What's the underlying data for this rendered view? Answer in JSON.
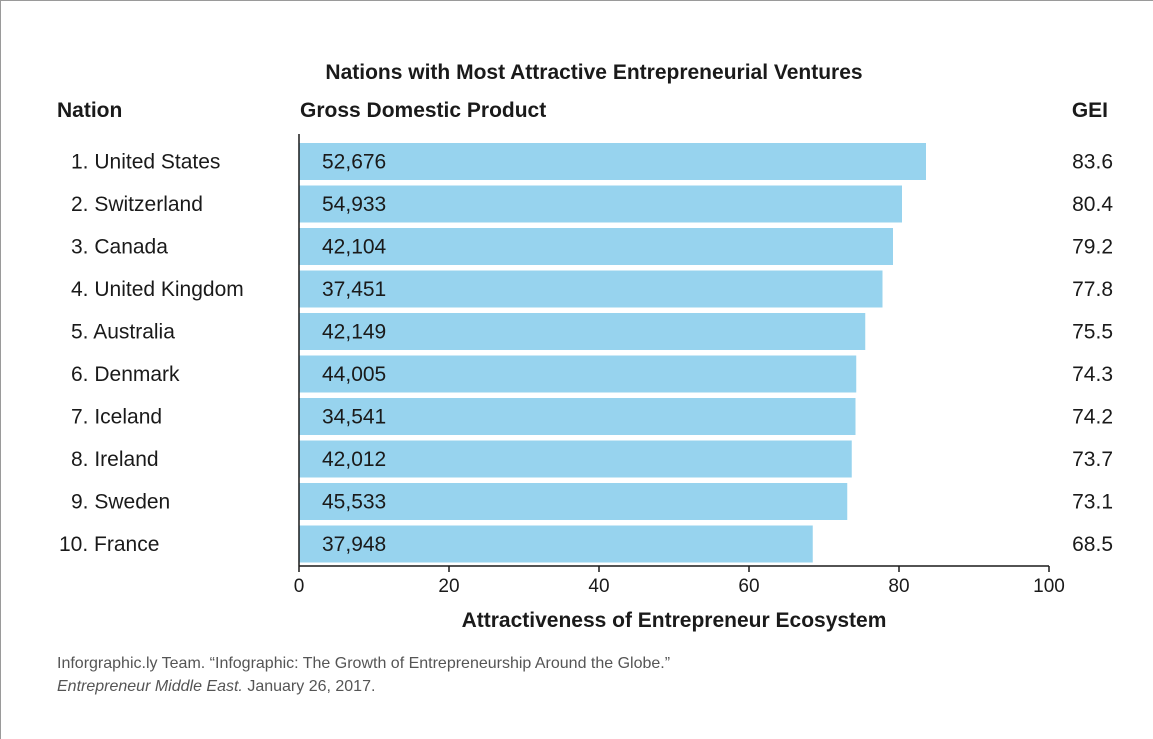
{
  "chart_data": {
    "type": "bar",
    "orientation": "horizontal",
    "title": "Nations with Most Attractive Entrepreneurial Ventures",
    "column_headers": {
      "nation": "Nation",
      "gdp": "Gross Domestic Product",
      "gei": "GEI"
    },
    "xlabel": "Attractiveness of Entrepreneur Ecosystem",
    "xlim": [
      0,
      100
    ],
    "xticks": [
      "0",
      "20",
      "40",
      "60",
      "80",
      "100"
    ],
    "grid": false,
    "bar_color": "#97d3ee",
    "categories": [
      "1. United States",
      "2. Switzerland",
      "3. Canada",
      "4. United Kingdom",
      "5. Australia",
      "6. Denmark",
      "7. Iceland",
      "8. Ireland",
      "9. Sweden",
      "10. France"
    ],
    "values": [
      83.6,
      80.4,
      79.2,
      77.8,
      75.5,
      74.3,
      74.2,
      73.7,
      73.1,
      68.5
    ],
    "gei_labels": [
      "83.6",
      "80.4",
      "79.2",
      "77.8",
      "75.5",
      "74.3",
      "74.2",
      "73.7",
      "73.1",
      "68.5"
    ],
    "gdp_labels": [
      "52,676",
      "54,933",
      "42,104",
      "37,451",
      "42,149",
      "44,005",
      "34,541",
      "42,012",
      "45,533",
      "37,948"
    ]
  },
  "source": {
    "line1": "Inforgraphic.ly Team. “Infographic: The Growth of Entrepreneurship Around the Globe.”",
    "line2_italic": "Entrepreneur Middle East.",
    "line2_rest": " January 26, 2017."
  }
}
